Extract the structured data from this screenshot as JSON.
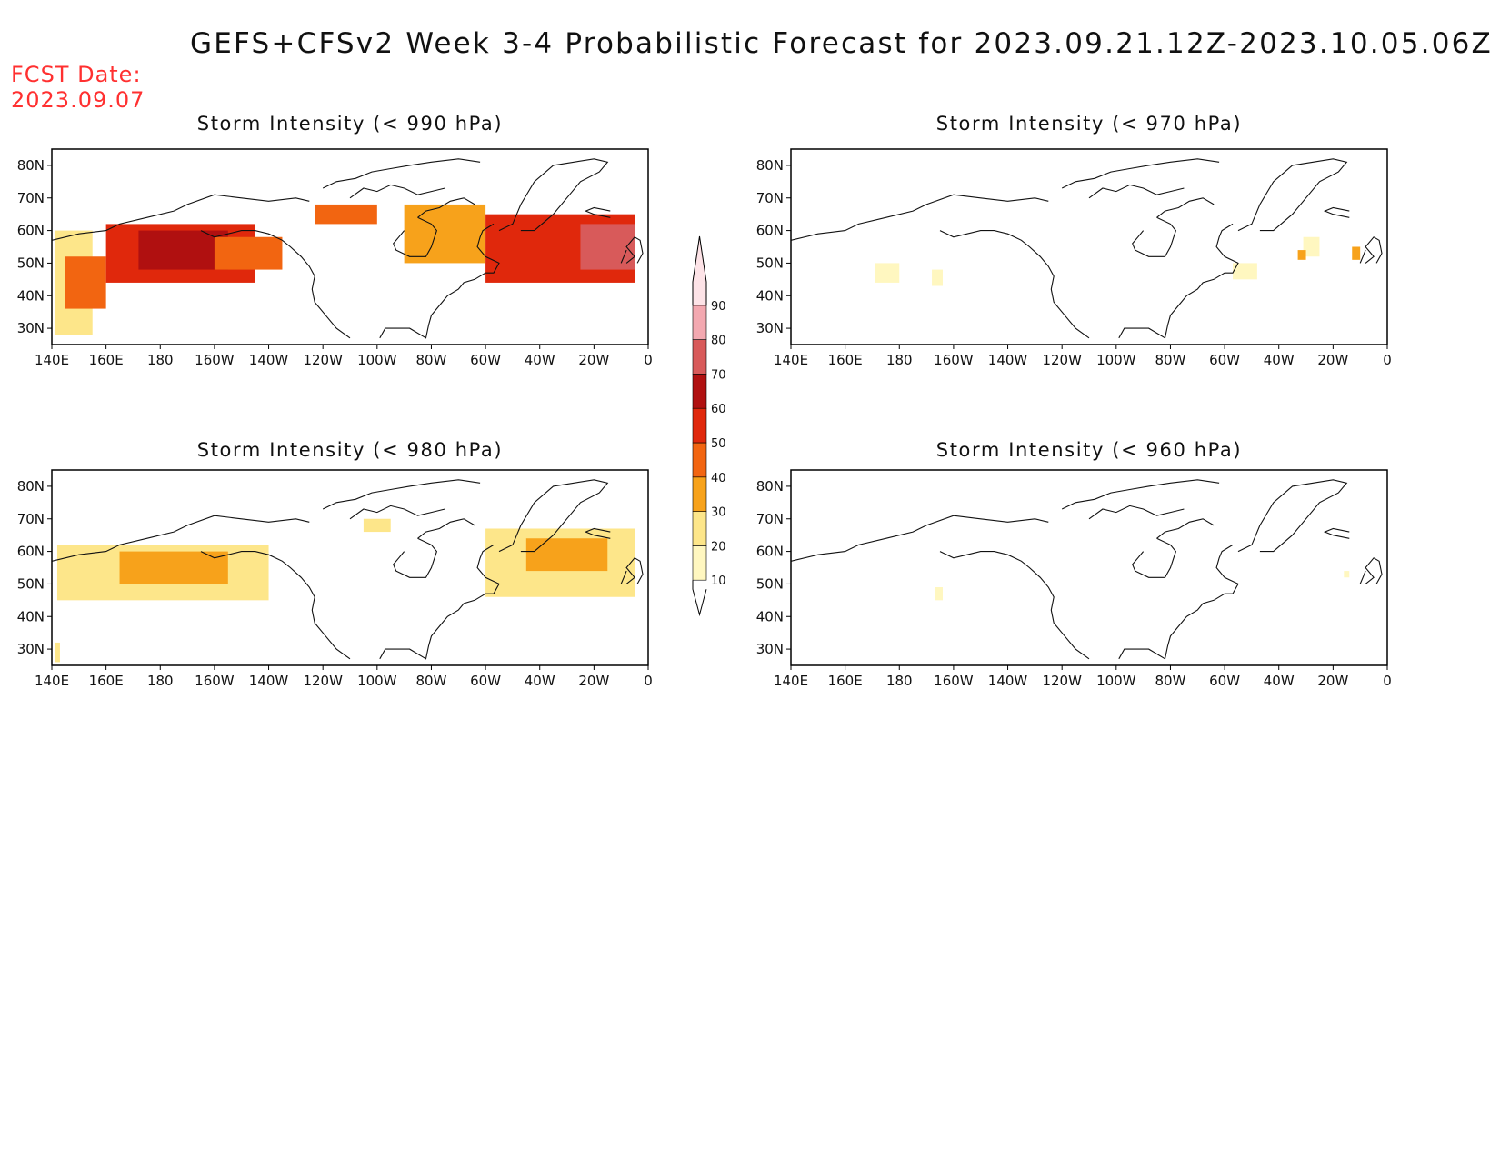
{
  "title": "GEFS+CFSv2 Week 3-4 Probabilistic Forecast for 2023.09.21.12Z-2023.10.05.06Z",
  "fcst_date_label": "FCST Date:",
  "fcst_date_value": "2023.09.07",
  "x_ticks": [
    "140E",
    "160E",
    "180",
    "160W",
    "140W",
    "120W",
    "100W",
    "80W",
    "60W",
    "40W",
    "20W",
    "0"
  ],
  "y_ticks": [
    "30N",
    "40N",
    "50N",
    "60N",
    "70N",
    "80N"
  ],
  "colorbar": {
    "levels": [
      "10",
      "20",
      "30",
      "40",
      "50",
      "60",
      "70",
      "80",
      "90"
    ],
    "colors": [
      "#fff7c0",
      "#fde68a",
      "#f7a21b",
      "#f26511",
      "#e0280c",
      "#b01010",
      "#d85a5a",
      "#f3a8b0",
      "#fde3e7"
    ]
  },
  "chart_data": [
    {
      "type": "heatmap",
      "title": "Storm Intensity (< 990 hPa)",
      "x_range": [
        140,
        360
      ],
      "y_range": [
        25,
        85
      ],
      "regions": [
        {
          "lon": [
            141,
            155
          ],
          "lat": [
            28,
            60
          ],
          "value": 25
        },
        {
          "lon": [
            145,
            160
          ],
          "lat": [
            36,
            52
          ],
          "value": 45
        },
        {
          "lon": [
            160,
            215
          ],
          "lat": [
            44,
            62
          ],
          "value": 55
        },
        {
          "lon": [
            172,
            205
          ],
          "lat": [
            48,
            60
          ],
          "value": 65
        },
        {
          "lon": [
            200,
            225
          ],
          "lat": [
            48,
            58
          ],
          "value": 45
        },
        {
          "lon": [
            237,
            260
          ],
          "lat": [
            62,
            68
          ],
          "value": 40
        },
        {
          "lon": [
            270,
            300
          ],
          "lat": [
            50,
            68
          ],
          "value": 35
        },
        {
          "lon": [
            300,
            355
          ],
          "lat": [
            44,
            65
          ],
          "value": 55
        },
        {
          "lon": [
            335,
            355
          ],
          "lat": [
            48,
            62
          ],
          "value": 70
        }
      ]
    },
    {
      "type": "heatmap",
      "title": "Storm Intensity (< 970 hPa)",
      "x_range": [
        140,
        360
      ],
      "y_range": [
        25,
        85
      ],
      "regions": [
        {
          "lon": [
            171,
            180
          ],
          "lat": [
            44,
            50
          ],
          "value": 15
        },
        {
          "lon": [
            192,
            196
          ],
          "lat": [
            43,
            48
          ],
          "value": 15
        },
        {
          "lon": [
            303,
            312
          ],
          "lat": [
            45,
            50
          ],
          "value": 15
        },
        {
          "lon": [
            329,
            335
          ],
          "lat": [
            52,
            58
          ],
          "value": 15
        },
        {
          "lon": [
            327,
            330
          ],
          "lat": [
            51,
            54
          ],
          "value": 35
        },
        {
          "lon": [
            347,
            350
          ],
          "lat": [
            51,
            55
          ],
          "value": 35
        }
      ]
    },
    {
      "type": "heatmap",
      "title": "Storm Intensity (< 980 hPa)",
      "x_range": [
        140,
        360
      ],
      "y_range": [
        25,
        85
      ],
      "regions": [
        {
          "lon": [
            142,
            220
          ],
          "lat": [
            45,
            62
          ],
          "value": 20
        },
        {
          "lon": [
            165,
            205
          ],
          "lat": [
            50,
            60
          ],
          "value": 30
        },
        {
          "lon": [
            300,
            355
          ],
          "lat": [
            46,
            67
          ],
          "value": 20
        },
        {
          "lon": [
            315,
            345
          ],
          "lat": [
            54,
            64
          ],
          "value": 30
        },
        {
          "lon": [
            255,
            265
          ],
          "lat": [
            66,
            70
          ],
          "value": 20
        },
        {
          "lon": [
            141,
            143
          ],
          "lat": [
            26,
            32
          ],
          "value": 20
        }
      ]
    },
    {
      "type": "heatmap",
      "title": "Storm Intensity (< 960 hPa)",
      "x_range": [
        140,
        360
      ],
      "y_range": [
        25,
        85
      ],
      "regions": [
        {
          "lon": [
            193,
            196
          ],
          "lat": [
            45,
            49
          ],
          "value": 15
        },
        {
          "lon": [
            344,
            346
          ],
          "lat": [
            52,
            54
          ],
          "value": 15
        }
      ]
    }
  ]
}
